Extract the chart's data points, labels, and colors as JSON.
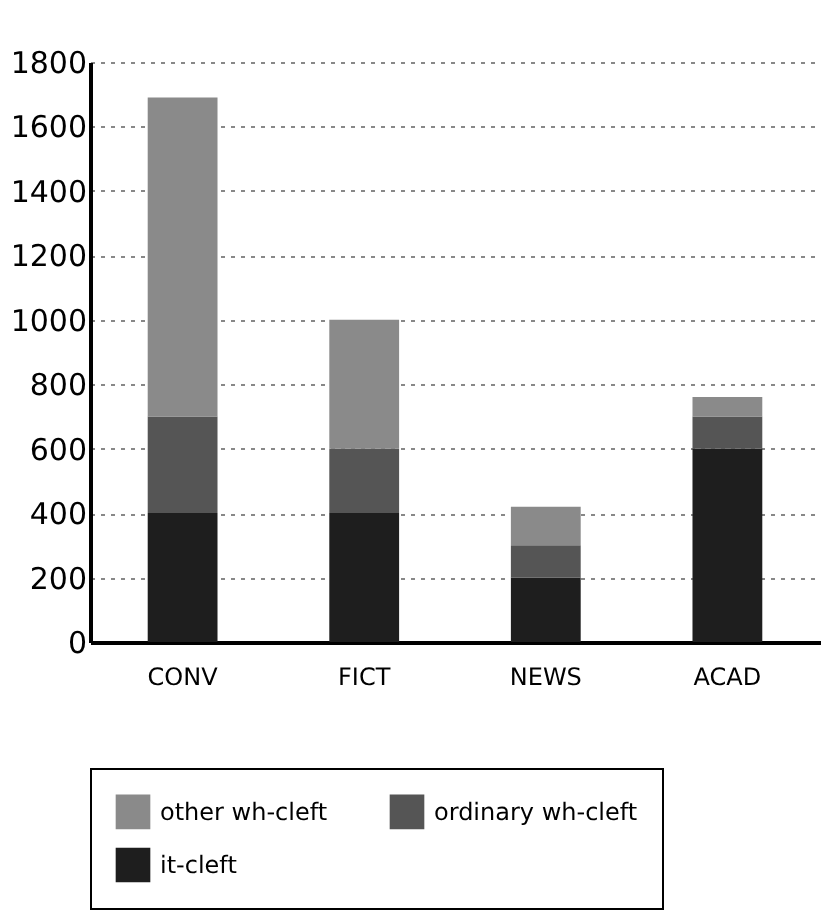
{
  "chart_data": {
    "type": "bar",
    "stacked": true,
    "categories": [
      "CONV",
      "FICT",
      "NEWS",
      "ACAD"
    ],
    "series": [
      {
        "name": "it-cleft",
        "color": "#1e1e1e",
        "values": [
          400,
          400,
          200,
          600
        ]
      },
      {
        "name": "ordinary wh-cleft",
        "color": "#555555",
        "values": [
          300,
          200,
          100,
          100
        ]
      },
      {
        "name": "other wh-cleft",
        "color": "#8a8a8a",
        "values": [
          990,
          400,
          120,
          60
        ]
      }
    ],
    "ylim": [
      0,
      1800
    ],
    "yticks": [
      0,
      200,
      400,
      600,
      800,
      1000,
      1200,
      1400,
      1600,
      1800
    ],
    "grid": "y",
    "legend": "bottom"
  }
}
